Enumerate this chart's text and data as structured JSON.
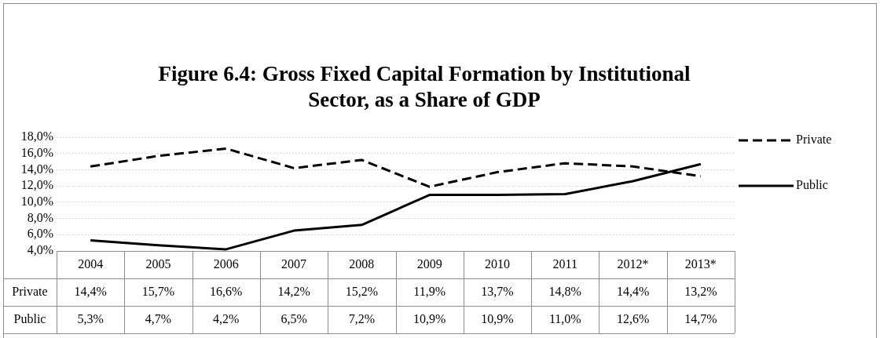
{
  "chart_data": {
    "type": "line",
    "title": "Figure 6.4: Gross Fixed Capital Formation by Institutional Sector, as a Share of GDP",
    "categories": [
      "2004",
      "2005",
      "2006",
      "2007",
      "2008",
      "2009",
      "2010",
      "2011",
      "2012*",
      "2013*"
    ],
    "series": [
      {
        "name": "Private",
        "color": "#000000",
        "line_style": "dashed",
        "values": [
          14.4,
          15.7,
          16.6,
          14.2,
          15.2,
          11.9,
          13.7,
          14.8,
          14.4,
          13.2
        ],
        "value_labels": [
          "14,4%",
          "15,7%",
          "16,6%",
          "14,2%",
          "15,2%",
          "11,9%",
          "13,7%",
          "14,8%",
          "14,4%",
          "13,2%"
        ]
      },
      {
        "name": "Public",
        "color": "#000000",
        "line_style": "solid",
        "values": [
          5.3,
          4.7,
          4.2,
          6.5,
          7.2,
          10.9,
          10.9,
          11.0,
          12.6,
          14.7
        ],
        "value_labels": [
          "5,3%",
          "4,7%",
          "4,2%",
          "6,5%",
          "7,2%",
          "10,9%",
          "10,9%",
          "11,0%",
          "12,6%",
          "14,7%"
        ]
      }
    ],
    "ylim": [
      4,
      18
    ],
    "yticks": [
      {
        "value": 4,
        "label": "4,0%"
      },
      {
        "value": 6,
        "label": "6,0%"
      },
      {
        "value": 8,
        "label": "8,0%"
      },
      {
        "value": 10,
        "label": "10,0%"
      },
      {
        "value": 12,
        "label": "12,0%"
      },
      {
        "value": 14,
        "label": "14,0%"
      },
      {
        "value": 16,
        "label": "16,0%"
      },
      {
        "value": 18,
        "label": "18,0%"
      }
    ],
    "grid": "y",
    "legend": "right",
    "marker": "none"
  }
}
